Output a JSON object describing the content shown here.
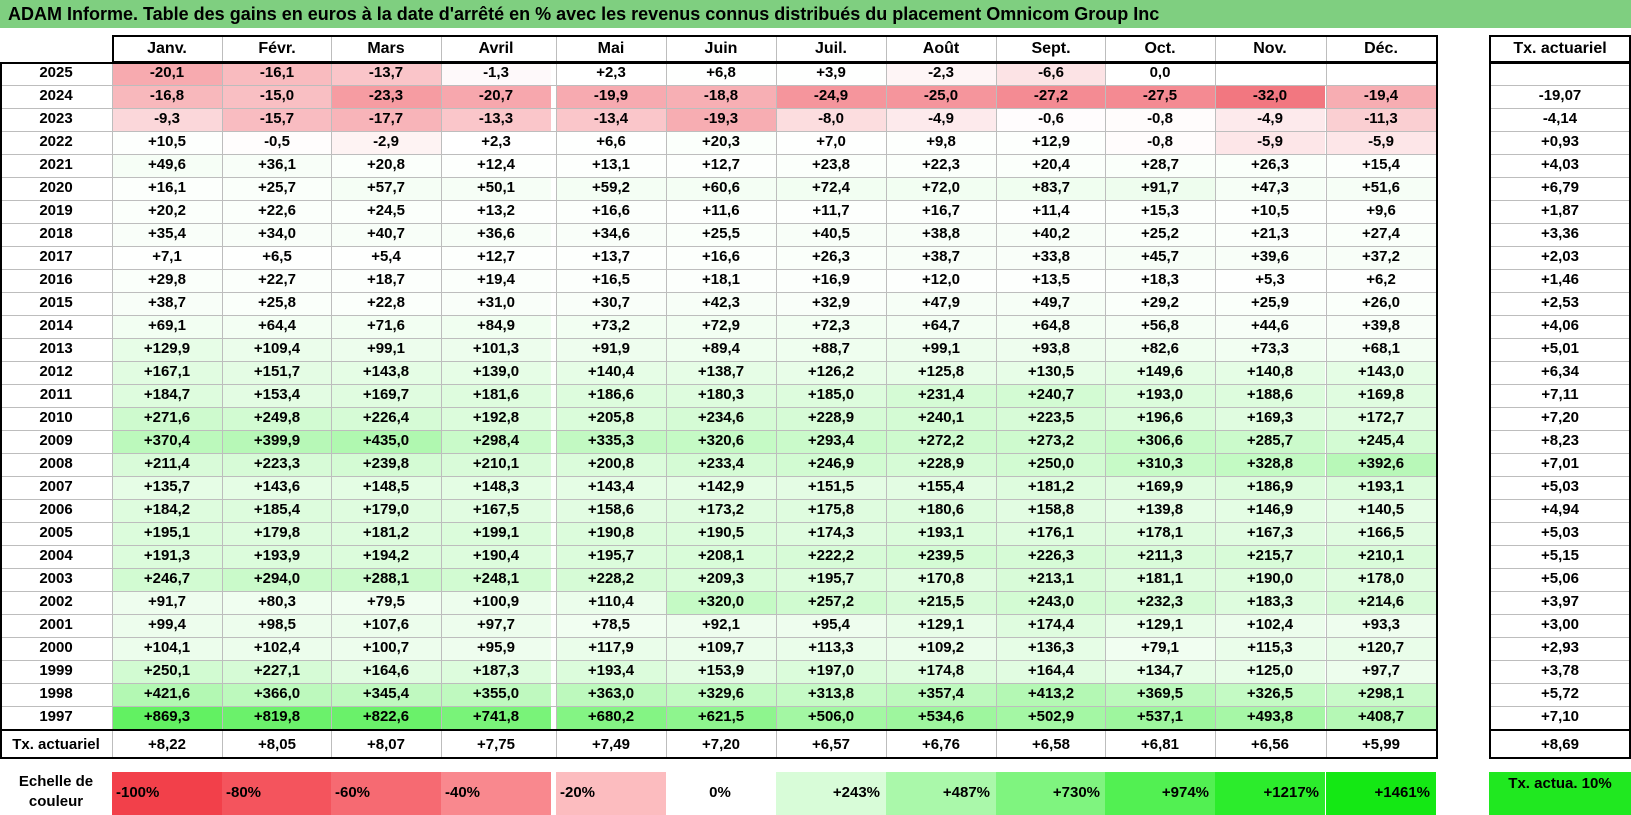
{
  "title": "ADAM Informe. Table des gains en euros à la date d'arrêté en % avec les revenus connus distribués du placement Omnicom Group Inc",
  "months": [
    "Janv.",
    "Févr.",
    "Mars",
    "Avril",
    "Mai",
    "Juin",
    "Juil.",
    "Août",
    "Sept.",
    "Oct.",
    "Nov.",
    "Déc."
  ],
  "tx_header": "Tx. actuariel",
  "rows": [
    {
      "year": "2025",
      "vals": [
        "-20,1",
        "-16,1",
        "-13,7",
        "-1,3",
        "+2,3",
        "+6,8",
        "+3,9",
        "-2,3",
        "-6,6",
        "0,0",
        "",
        ""
      ],
      "tx": ""
    },
    {
      "year": "2024",
      "vals": [
        "-16,8",
        "-15,0",
        "-23,3",
        "-20,7",
        "-19,9",
        "-18,8",
        "-24,9",
        "-25,0",
        "-27,2",
        "-27,5",
        "-32,0",
        "-19,4"
      ],
      "tx": "-19,07"
    },
    {
      "year": "2023",
      "vals": [
        "-9,3",
        "-15,7",
        "-17,7",
        "-13,3",
        "-13,4",
        "-19,3",
        "-8,0",
        "-4,9",
        "-0,6",
        "-0,8",
        "-4,9",
        "-11,3"
      ],
      "tx": "-4,14"
    },
    {
      "year": "2022",
      "vals": [
        "+10,5",
        "-0,5",
        "-2,9",
        "+2,3",
        "+6,6",
        "+20,3",
        "+7,0",
        "+9,8",
        "+12,9",
        "-0,8",
        "-5,9",
        "-5,9"
      ],
      "tx": "+0,93"
    },
    {
      "year": "2021",
      "vals": [
        "+49,6",
        "+36,1",
        "+20,8",
        "+12,4",
        "+13,1",
        "+12,7",
        "+23,8",
        "+22,3",
        "+20,4",
        "+28,7",
        "+26,3",
        "+15,4"
      ],
      "tx": "+4,03"
    },
    {
      "year": "2020",
      "vals": [
        "+16,1",
        "+25,7",
        "+57,7",
        "+50,1",
        "+59,2",
        "+60,6",
        "+72,4",
        "+72,0",
        "+83,7",
        "+91,7",
        "+47,3",
        "+51,6"
      ],
      "tx": "+6,79"
    },
    {
      "year": "2019",
      "vals": [
        "+20,2",
        "+22,6",
        "+24,5",
        "+13,2",
        "+16,6",
        "+11,6",
        "+11,7",
        "+16,7",
        "+11,4",
        "+15,3",
        "+10,5",
        "+9,6"
      ],
      "tx": "+1,87"
    },
    {
      "year": "2018",
      "vals": [
        "+35,4",
        "+34,0",
        "+40,7",
        "+36,6",
        "+34,6",
        "+25,5",
        "+40,5",
        "+38,8",
        "+40,2",
        "+25,2",
        "+21,3",
        "+27,4"
      ],
      "tx": "+3,36"
    },
    {
      "year": "2017",
      "vals": [
        "+7,1",
        "+6,5",
        "+5,4",
        "+12,7",
        "+13,7",
        "+16,6",
        "+26,3",
        "+38,7",
        "+33,8",
        "+45,7",
        "+39,6",
        "+37,2"
      ],
      "tx": "+2,03"
    },
    {
      "year": "2016",
      "vals": [
        "+29,8",
        "+22,7",
        "+18,7",
        "+19,4",
        "+16,5",
        "+18,1",
        "+16,9",
        "+12,0",
        "+13,5",
        "+18,3",
        "+5,3",
        "+6,2"
      ],
      "tx": "+1,46"
    },
    {
      "year": "2015",
      "vals": [
        "+38,7",
        "+25,8",
        "+22,8",
        "+31,0",
        "+30,7",
        "+42,3",
        "+32,9",
        "+47,9",
        "+49,7",
        "+29,2",
        "+25,9",
        "+26,0"
      ],
      "tx": "+2,53"
    },
    {
      "year": "2014",
      "vals": [
        "+69,1",
        "+64,4",
        "+71,6",
        "+84,9",
        "+73,2",
        "+72,9",
        "+72,3",
        "+64,7",
        "+64,8",
        "+56,8",
        "+44,6",
        "+39,8"
      ],
      "tx": "+4,06"
    },
    {
      "year": "2013",
      "vals": [
        "+129,9",
        "+109,4",
        "+99,1",
        "+101,3",
        "+91,9",
        "+89,4",
        "+88,7",
        "+99,1",
        "+93,8",
        "+82,6",
        "+73,3",
        "+68,1"
      ],
      "tx": "+5,01"
    },
    {
      "year": "2012",
      "vals": [
        "+167,1",
        "+151,7",
        "+143,8",
        "+139,0",
        "+140,4",
        "+138,7",
        "+126,2",
        "+125,8",
        "+130,5",
        "+149,6",
        "+140,8",
        "+143,0"
      ],
      "tx": "+6,34"
    },
    {
      "year": "2011",
      "vals": [
        "+184,7",
        "+153,4",
        "+169,7",
        "+181,6",
        "+186,6",
        "+180,3",
        "+185,0",
        "+231,4",
        "+240,7",
        "+193,0",
        "+188,6",
        "+169,8"
      ],
      "tx": "+7,11"
    },
    {
      "year": "2010",
      "vals": [
        "+271,6",
        "+249,8",
        "+226,4",
        "+192,8",
        "+205,8",
        "+234,6",
        "+228,9",
        "+240,1",
        "+223,5",
        "+196,6",
        "+169,3",
        "+172,7"
      ],
      "tx": "+7,20"
    },
    {
      "year": "2009",
      "vals": [
        "+370,4",
        "+399,9",
        "+435,0",
        "+298,4",
        "+335,3",
        "+320,6",
        "+293,4",
        "+272,2",
        "+273,2",
        "+306,6",
        "+285,7",
        "+245,4"
      ],
      "tx": "+8,23"
    },
    {
      "year": "2008",
      "vals": [
        "+211,4",
        "+223,3",
        "+239,8",
        "+210,1",
        "+200,8",
        "+233,4",
        "+246,9",
        "+228,9",
        "+250,0",
        "+310,3",
        "+328,8",
        "+392,6"
      ],
      "tx": "+7,01"
    },
    {
      "year": "2007",
      "vals": [
        "+135,7",
        "+143,6",
        "+148,5",
        "+148,3",
        "+143,4",
        "+142,9",
        "+151,5",
        "+155,4",
        "+181,2",
        "+169,9",
        "+186,9",
        "+193,1"
      ],
      "tx": "+5,03"
    },
    {
      "year": "2006",
      "vals": [
        "+184,2",
        "+185,4",
        "+179,0",
        "+167,5",
        "+158,6",
        "+173,2",
        "+175,8",
        "+180,6",
        "+158,8",
        "+139,8",
        "+146,9",
        "+140,5"
      ],
      "tx": "+4,94"
    },
    {
      "year": "2005",
      "vals": [
        "+195,1",
        "+179,8",
        "+181,2",
        "+199,1",
        "+190,8",
        "+190,5",
        "+174,3",
        "+193,1",
        "+176,1",
        "+178,1",
        "+167,3",
        "+166,5"
      ],
      "tx": "+5,03"
    },
    {
      "year": "2004",
      "vals": [
        "+191,3",
        "+193,9",
        "+194,2",
        "+190,4",
        "+195,7",
        "+208,1",
        "+222,2",
        "+239,5",
        "+226,3",
        "+211,3",
        "+215,7",
        "+210,1"
      ],
      "tx": "+5,15"
    },
    {
      "year": "2003",
      "vals": [
        "+246,7",
        "+294,0",
        "+288,1",
        "+248,1",
        "+228,2",
        "+209,3",
        "+195,7",
        "+170,8",
        "+213,1",
        "+181,1",
        "+190,0",
        "+178,0"
      ],
      "tx": "+5,06"
    },
    {
      "year": "2002",
      "vals": [
        "+91,7",
        "+80,3",
        "+79,5",
        "+100,9",
        "+110,4",
        "+320,0",
        "+257,2",
        "+215,5",
        "+243,0",
        "+232,3",
        "+183,3",
        "+214,6"
      ],
      "tx": "+3,97"
    },
    {
      "year": "2001",
      "vals": [
        "+99,4",
        "+98,5",
        "+107,6",
        "+97,7",
        "+78,5",
        "+92,1",
        "+95,4",
        "+129,1",
        "+174,4",
        "+129,1",
        "+102,4",
        "+93,3"
      ],
      "tx": "+3,00"
    },
    {
      "year": "2000",
      "vals": [
        "+104,1",
        "+102,4",
        "+100,7",
        "+95,9",
        "+117,9",
        "+109,7",
        "+113,3",
        "+109,2",
        "+136,3",
        "+79,1",
        "+115,3",
        "+120,7"
      ],
      "tx": "+2,93"
    },
    {
      "year": "1999",
      "vals": [
        "+250,1",
        "+227,1",
        "+164,6",
        "+187,3",
        "+193,4",
        "+153,9",
        "+197,0",
        "+174,8",
        "+164,4",
        "+134,7",
        "+125,0",
        "+97,7"
      ],
      "tx": "+3,78"
    },
    {
      "year": "1998",
      "vals": [
        "+421,6",
        "+366,0",
        "+345,4",
        "+355,0",
        "+363,0",
        "+329,6",
        "+313,8",
        "+357,4",
        "+413,2",
        "+369,5",
        "+326,5",
        "+298,1"
      ],
      "tx": "+5,72"
    },
    {
      "year": "1997",
      "vals": [
        "+869,3",
        "+819,8",
        "+822,6",
        "+741,8",
        "+680,2",
        "+621,5",
        "+506,0",
        "+534,6",
        "+502,9",
        "+537,1",
        "+493,8",
        "+408,7"
      ],
      "tx": "+7,10"
    }
  ],
  "footer": {
    "label": "Tx. actuariel",
    "vals": [
      "+8,22",
      "+8,05",
      "+8,07",
      "+7,75",
      "+7,49",
      "+7,20",
      "+6,57",
      "+6,76",
      "+6,58",
      "+6,81",
      "+6,56",
      "+5,99"
    ],
    "tx": "+8,69"
  },
  "scale": {
    "label": "Echelle de couleur",
    "items": [
      {
        "text": "-100%",
        "color": "#f2404a",
        "align": "left"
      },
      {
        "text": "-80%",
        "color": "#f4545d",
        "align": "left"
      },
      {
        "text": "-60%",
        "color": "#f66a72",
        "align": "left"
      },
      {
        "text": "-40%",
        "color": "#f9888e",
        "align": "left"
      },
      {
        "text": "-20%",
        "color": "#fcbcbf",
        "align": "left"
      },
      {
        "text": "0%",
        "color": "#ffffff",
        "align": "center"
      },
      {
        "text": "+243%",
        "color": "#d8fcd8",
        "align": "right"
      },
      {
        "text": "+487%",
        "color": "#aaf8aa",
        "align": "right"
      },
      {
        "text": "+730%",
        "color": "#7ff47f",
        "align": "right"
      },
      {
        "text": "+974%",
        "color": "#52f052",
        "align": "right"
      },
      {
        "text": "+1217%",
        "color": "#2cec2c",
        "align": "right"
      },
      {
        "text": "+1461%",
        "color": "#14e814",
        "align": "right"
      }
    ],
    "tx_label": "Tx. actua. 10%",
    "tx_color": "#20e820"
  },
  "chart_data": {
    "type": "heatmap",
    "title": "ADAM Informe. Table des gains en euros à la date d'arrêté en % avec les revenus connus distribués du placement Omnicom Group Inc",
    "x": [
      "Janv.",
      "Févr.",
      "Mars",
      "Avril",
      "Mai",
      "Juin",
      "Juil.",
      "Août",
      "Sept.",
      "Oct.",
      "Nov.",
      "Déc."
    ],
    "y": [
      "2025",
      "2024",
      "2023",
      "2022",
      "2021",
      "2020",
      "2019",
      "2018",
      "2017",
      "2016",
      "2015",
      "2014",
      "2013",
      "2012",
      "2011",
      "2010",
      "2009",
      "2008",
      "2007",
      "2006",
      "2005",
      "2004",
      "2003",
      "2002",
      "2001",
      "2000",
      "1999",
      "1998",
      "1997"
    ],
    "color_scale": {
      "min": -100,
      "max": 1461,
      "neg_color": "#f2404a",
      "zero_color": "#ffffff",
      "pos_color": "#14e814"
    }
  }
}
